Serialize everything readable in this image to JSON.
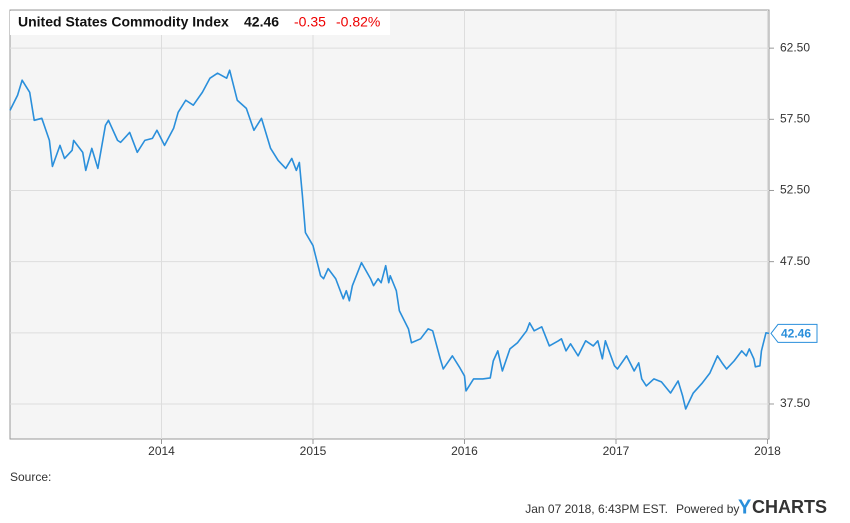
{
  "chart_data": {
    "type": "line",
    "title": "United States Commodity Index",
    "price": "42.46",
    "change": "-0.35",
    "change_percent": "-0.82%",
    "last_label": "42.46",
    "source_label": "Source:",
    "timestamp": "Jan 07 2018, 6:43PM EST.",
    "powered_by": "Powered by",
    "brand_y": "Y",
    "brand_rest": "CHARTS",
    "xlim": [
      2013.0,
      2018.01
    ],
    "xticks": [
      2014,
      2015,
      2016,
      2017,
      2018
    ],
    "ylim": [
      35.04,
      65.18
    ],
    "yticks": [
      {
        "value": 37.5,
        "label": "37.50"
      },
      {
        "value": 47.5,
        "label": "47.50"
      },
      {
        "value": 52.5,
        "label": "52.50"
      },
      {
        "value": 57.5,
        "label": "57.50"
      },
      {
        "value": 62.5,
        "label": "62.50"
      }
    ],
    "grid_values": [
      37.5,
      42.5,
      47.5,
      52.5,
      57.5,
      62.5
    ],
    "grid": true,
    "x": [
      2013.0,
      2013.05,
      2013.08,
      2013.13,
      2013.16,
      2013.21,
      2013.26,
      2013.28,
      2013.33,
      2013.36,
      2013.41,
      2013.42,
      2013.48,
      2013.5,
      2013.54,
      2013.58,
      2013.63,
      2013.65,
      2013.71,
      2013.73,
      2013.79,
      2013.84,
      2013.89,
      2013.94,
      2013.97,
      2014.02,
      2014.08,
      2014.11,
      2014.16,
      2014.21,
      2014.27,
      2014.32,
      2014.37,
      2014.43,
      2014.45,
      2014.5,
      2014.56,
      2014.61,
      2014.66,
      2014.72,
      2014.77,
      2014.82,
      2014.86,
      2014.89,
      2014.91,
      2014.93,
      2014.95,
      2015.0,
      2015.05,
      2015.07,
      2015.1,
      2015.15,
      2015.2,
      2015.22,
      2015.24,
      2015.26,
      2015.32,
      2015.38,
      2015.4,
      2015.43,
      2015.45,
      2015.48,
      2015.5,
      2015.51,
      2015.55,
      2015.57,
      2015.63,
      2015.65,
      2015.71,
      2015.76,
      2015.79,
      2015.84,
      2015.86,
      2015.92,
      2015.97,
      2016.0,
      2016.01,
      2016.06,
      2016.12,
      2016.17,
      2016.19,
      2016.22,
      2016.25,
      2016.3,
      2016.35,
      2016.41,
      2016.43,
      2016.46,
      2016.51,
      2016.56,
      2016.62,
      2016.64,
      2016.67,
      2016.7,
      2016.75,
      2016.8,
      2016.85,
      2016.88,
      2016.91,
      2016.93,
      2016.99,
      2017.01,
      2017.07,
      2017.12,
      2017.15,
      2017.17,
      2017.2,
      2017.25,
      2017.3,
      2017.36,
      2017.41,
      2017.44,
      2017.46,
      2017.51,
      2017.57,
      2017.62,
      2017.67,
      2017.7,
      2017.73,
      2017.78,
      2017.83,
      2017.86,
      2017.88,
      2017.91,
      2017.92,
      2017.95,
      2017.96,
      2017.99,
      2018.01
    ],
    "series": [
      {
        "name": "United States Commodity Index",
        "color": "#2a8fdb",
        "values": [
          58.13,
          59.19,
          60.25,
          59.4,
          57.43,
          57.57,
          56.02,
          54.19,
          55.67,
          54.75,
          55.32,
          56.02,
          55.18,
          53.91,
          55.46,
          54.05,
          57.08,
          57.43,
          56.02,
          55.88,
          56.58,
          55.18,
          56.02,
          56.16,
          56.73,
          55.67,
          56.87,
          57.99,
          58.84,
          58.49,
          59.4,
          60.39,
          60.74,
          60.39,
          60.95,
          58.84,
          58.27,
          56.73,
          57.57,
          55.46,
          54.61,
          54.05,
          54.75,
          53.91,
          54.47,
          52.15,
          49.54,
          48.63,
          46.51,
          46.3,
          47.01,
          46.3,
          44.89,
          45.46,
          44.75,
          45.81,
          47.43,
          46.3,
          45.81,
          46.3,
          46.02,
          47.22,
          46.02,
          46.51,
          45.46,
          44.05,
          42.78,
          41.8,
          42.08,
          42.78,
          42.64,
          40.67,
          39.96,
          40.88,
          40.03,
          39.47,
          38.42,
          39.26,
          39.26,
          39.33,
          40.53,
          41.23,
          39.82,
          41.37,
          41.8,
          42.64,
          43.2,
          42.64,
          42.92,
          41.58,
          41.94,
          42.08,
          41.23,
          41.73,
          40.88,
          41.94,
          41.58,
          41.94,
          40.67,
          41.94,
          40.18,
          39.96,
          40.88,
          39.82,
          40.39,
          39.26,
          38.77,
          39.26,
          39.05,
          38.27,
          39.12,
          38.06,
          37.15,
          38.27,
          38.98,
          39.68,
          40.88,
          40.39,
          39.96,
          40.53,
          41.23,
          40.88,
          41.37,
          40.67,
          40.11,
          40.18,
          41.23,
          42.5,
          42.46
        ]
      }
    ]
  }
}
